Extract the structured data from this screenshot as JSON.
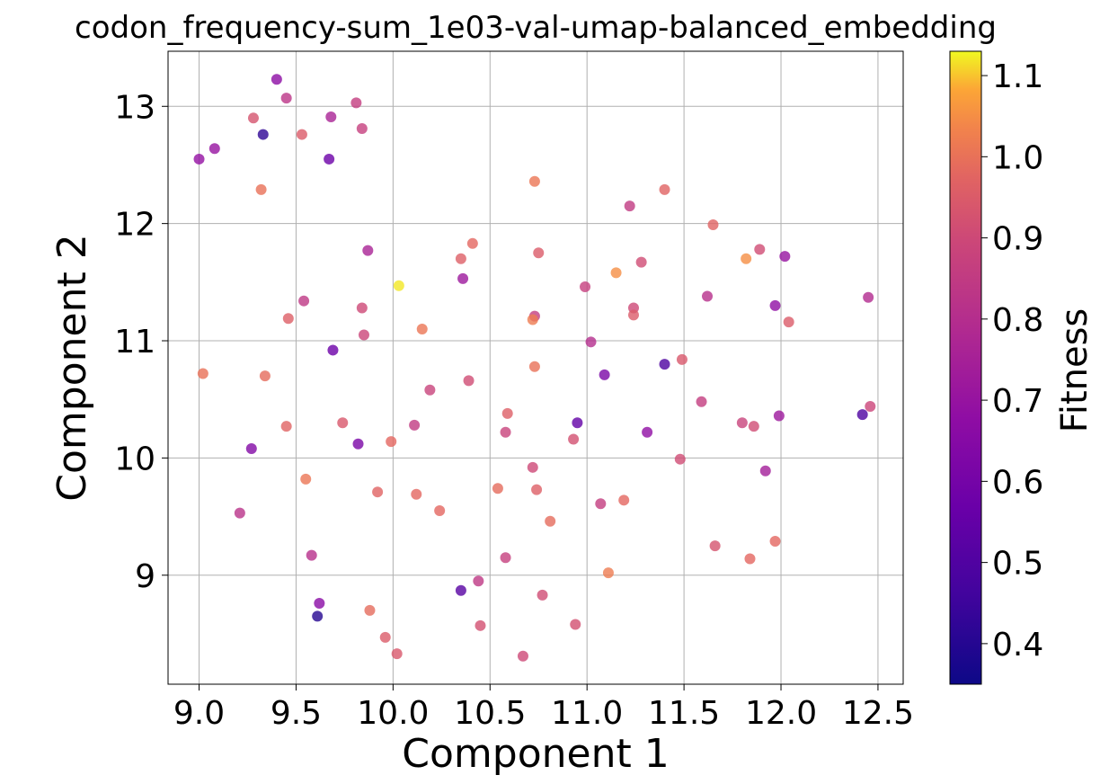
{
  "chart_data": {
    "type": "scatter",
    "title": "codon_frequency-sum_1e03-val-umap-balanced_embedding",
    "xlabel": "Component 1",
    "ylabel": "Component 2",
    "xlim": [
      8.84,
      12.63
    ],
    "ylim": [
      8.07,
      13.47
    ],
    "xticks": [
      "9.0",
      "9.5",
      "10.0",
      "10.5",
      "11.0",
      "11.5",
      "12.0",
      "12.5"
    ],
    "yticks": [
      "9",
      "10",
      "11",
      "12",
      "13"
    ],
    "grid": true,
    "colormap": "plasma",
    "colorbar": {
      "label": "Fitness",
      "range": [
        0.35,
        1.13
      ],
      "ticks": [
        "0.4",
        "0.5",
        "0.6",
        "0.7",
        "0.8",
        "0.9",
        "1.0",
        "1.1"
      ]
    },
    "points": [
      [
        9.0,
        12.55,
        0.69
      ],
      [
        9.08,
        12.64,
        0.7
      ],
      [
        9.28,
        12.9,
        0.93
      ],
      [
        9.33,
        12.76,
        0.42
      ],
      [
        9.4,
        13.23,
        0.67
      ],
      [
        9.45,
        13.07,
        0.83
      ],
      [
        9.53,
        12.76,
        0.95
      ],
      [
        9.68,
        12.91,
        0.76
      ],
      [
        9.67,
        12.55,
        0.57
      ],
      [
        9.81,
        13.03,
        0.86
      ],
      [
        9.84,
        12.81,
        0.87
      ],
      [
        9.32,
        12.29,
        1.0
      ],
      [
        10.73,
        12.36,
        1.01
      ],
      [
        11.4,
        12.29,
        0.97
      ],
      [
        11.22,
        12.15,
        0.85
      ],
      [
        11.65,
        11.99,
        0.97
      ],
      [
        9.87,
        11.77,
        0.76
      ],
      [
        10.41,
        11.83,
        0.98
      ],
      [
        10.35,
        11.7,
        0.96
      ],
      [
        10.75,
        11.75,
        0.95
      ],
      [
        11.82,
        11.7,
        1.05
      ],
      [
        11.89,
        11.78,
        0.91
      ],
      [
        12.02,
        11.72,
        0.7
      ],
      [
        11.15,
        11.58,
        1.05
      ],
      [
        11.28,
        11.67,
        0.91
      ],
      [
        10.03,
        11.47,
        1.12
      ],
      [
        9.54,
        11.34,
        0.84
      ],
      [
        10.36,
        11.53,
        0.72
      ],
      [
        10.99,
        11.46,
        0.87
      ],
      [
        9.84,
        11.28,
        0.9
      ],
      [
        9.46,
        11.19,
        0.96
      ],
      [
        11.62,
        11.38,
        0.81
      ],
      [
        11.97,
        11.3,
        0.68
      ],
      [
        12.45,
        11.37,
        0.79
      ],
      [
        11.24,
        11.28,
        0.9
      ],
      [
        11.24,
        11.22,
        0.95
      ],
      [
        10.73,
        11.21,
        0.86
      ],
      [
        10.72,
        11.18,
        1.02
      ],
      [
        12.04,
        11.16,
        0.95
      ],
      [
        10.15,
        11.1,
        1.01
      ],
      [
        9.85,
        11.05,
        0.89
      ],
      [
        11.02,
        10.99,
        0.8
      ],
      [
        9.69,
        10.92,
        0.57
      ],
      [
        11.49,
        10.84,
        0.94
      ],
      [
        9.02,
        10.72,
        1.0
      ],
      [
        9.34,
        10.7,
        0.99
      ],
      [
        10.73,
        10.78,
        1.0
      ],
      [
        11.09,
        10.71,
        0.62
      ],
      [
        11.4,
        10.8,
        0.49
      ],
      [
        10.39,
        10.66,
        0.91
      ],
      [
        10.19,
        10.58,
        0.88
      ],
      [
        11.59,
        10.48,
        0.86
      ],
      [
        12.46,
        10.44,
        0.89
      ],
      [
        10.59,
        10.38,
        0.96
      ],
      [
        11.99,
        10.36,
        0.72
      ],
      [
        12.42,
        10.37,
        0.49
      ],
      [
        9.45,
        10.27,
        0.97
      ],
      [
        9.74,
        10.3,
        0.94
      ],
      [
        10.11,
        10.28,
        0.85
      ],
      [
        10.95,
        10.3,
        0.55
      ],
      [
        11.8,
        10.3,
        0.88
      ],
      [
        11.86,
        10.27,
        0.91
      ],
      [
        10.58,
        10.22,
        0.88
      ],
      [
        11.31,
        10.22,
        0.68
      ],
      [
        9.27,
        10.08,
        0.64
      ],
      [
        9.82,
        10.12,
        0.62
      ],
      [
        9.99,
        10.14,
        0.98
      ],
      [
        10.93,
        10.16,
        0.92
      ],
      [
        11.48,
        9.99,
        0.91
      ],
      [
        11.92,
        9.89,
        0.74
      ],
      [
        10.72,
        9.92,
        0.9
      ],
      [
        9.55,
        9.82,
        1.01
      ],
      [
        9.92,
        9.71,
        0.97
      ],
      [
        10.12,
        9.69,
        0.98
      ],
      [
        10.54,
        9.74,
        0.99
      ],
      [
        10.74,
        9.73,
        0.96
      ],
      [
        11.07,
        9.61,
        0.86
      ],
      [
        11.19,
        9.64,
        0.98
      ],
      [
        9.21,
        9.53,
        0.82
      ],
      [
        10.24,
        9.55,
        0.98
      ],
      [
        10.81,
        9.46,
        0.99
      ],
      [
        11.66,
        9.25,
        0.93
      ],
      [
        11.97,
        9.29,
        0.98
      ],
      [
        9.58,
        9.17,
        0.81
      ],
      [
        10.58,
        9.15,
        0.87
      ],
      [
        11.84,
        9.14,
        0.98
      ],
      [
        11.11,
        9.02,
        1.02
      ],
      [
        10.35,
        8.87,
        0.52
      ],
      [
        10.44,
        8.95,
        0.84
      ],
      [
        10.77,
        8.83,
        0.91
      ],
      [
        9.62,
        8.76,
        0.66
      ],
      [
        9.88,
        8.7,
        0.99
      ],
      [
        9.61,
        8.65,
        0.4
      ],
      [
        9.96,
        8.47,
        0.95
      ],
      [
        10.45,
        8.57,
        0.92
      ],
      [
        10.94,
        8.58,
        0.92
      ],
      [
        10.02,
        8.33,
        0.94
      ],
      [
        10.67,
        8.31,
        0.9
      ]
    ]
  }
}
